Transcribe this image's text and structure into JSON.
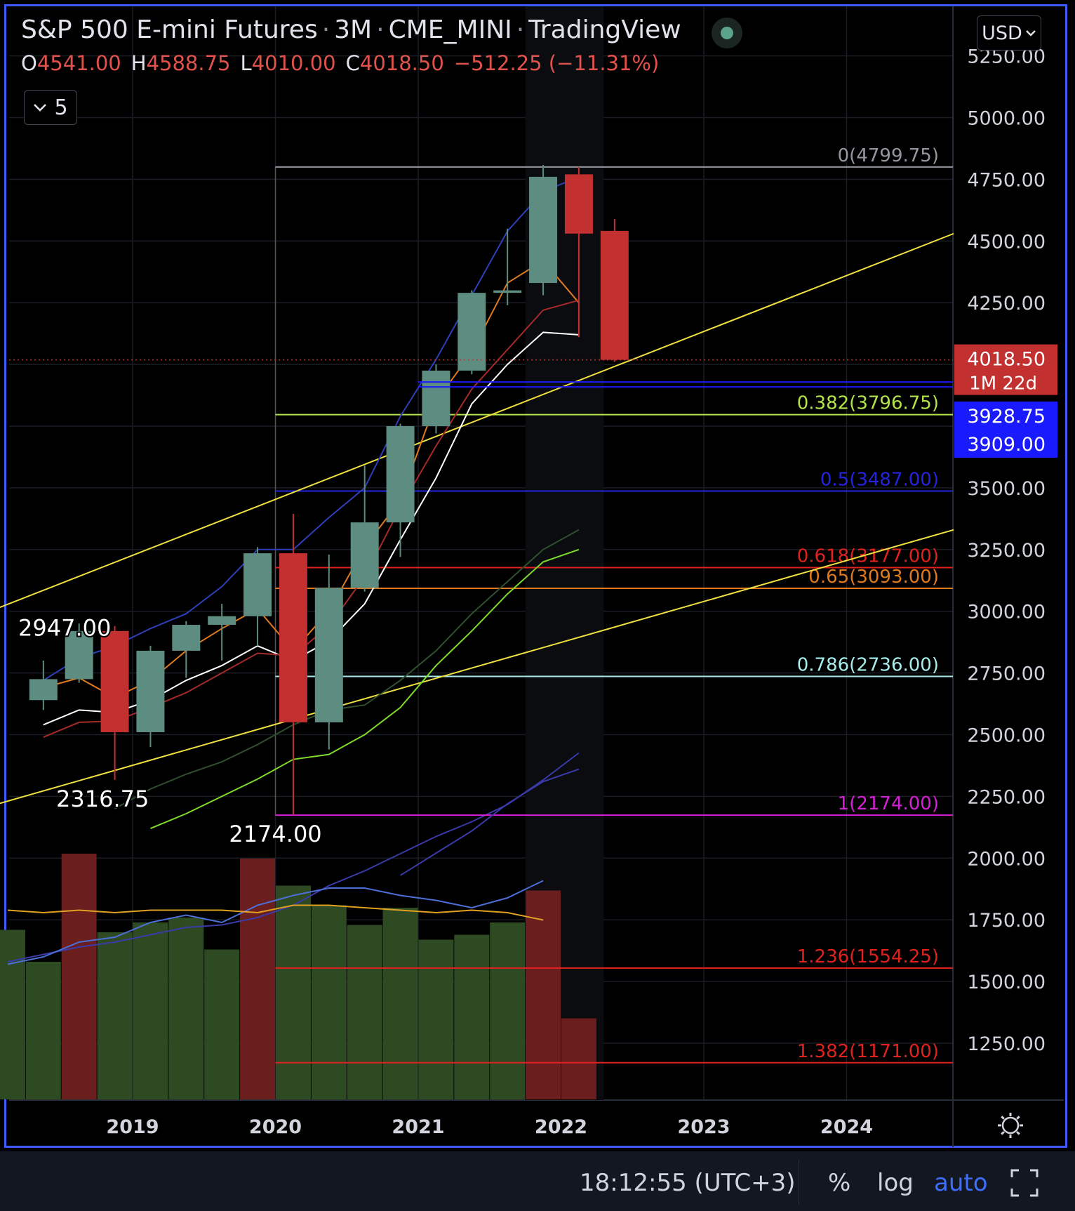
{
  "header": {
    "symbol": "S&P 500 E-mini Futures",
    "interval": "3M",
    "exchange": "CME_MINI",
    "source": "TradingView",
    "sep": "·"
  },
  "ohlc": {
    "o_label": "O",
    "o": "4541.00",
    "h_label": "H",
    "h": "4588.75",
    "l_label": "L",
    "l": "4010.00",
    "c_label": "C",
    "c": "4018.50",
    "change": "−512.25 (−11.31%)"
  },
  "indicators_toggle": {
    "icon": "chevron-down-icon",
    "count": "5"
  },
  "currency": {
    "label": "USD",
    "icon": "chevron-down-icon"
  },
  "footer": {
    "clock": "18:12:55 (UTC+3)",
    "percent_label": "%",
    "log_label": "log",
    "auto_label": "auto"
  },
  "colors": {
    "up": "#5d8c80",
    "down": "#c2302f",
    "vol_up": "#2e4a23",
    "vol_down": "#6b1e1e",
    "accent": "#3d6fff",
    "price_label": "#c2302f",
    "blue_label": "#1a1aff"
  },
  "chart_data": {
    "type": "candlestick",
    "interval": "3M",
    "y_range": [
      1000,
      5330
    ],
    "x_ticks": [
      "2019",
      "2020",
      "2021",
      "2022",
      "2023",
      "2024"
    ],
    "y_ticks": [
      "1250.00",
      "1500.00",
      "1750.00",
      "2000.00",
      "2250.00",
      "2500.00",
      "2750.00",
      "3000.00",
      "3250.00",
      "3500.00",
      "3750.00",
      "4000.00",
      "4250.00",
      "4500.00",
      "4750.00",
      "5000.00",
      "5250.00"
    ],
    "candles": [
      {
        "t": "2018-Q2",
        "open": 2640,
        "high": 2800,
        "low": 2600,
        "close": 2725
      },
      {
        "t": "2018-Q3",
        "open": 2725,
        "high": 2950,
        "low": 2710,
        "close": 2920
      },
      {
        "t": "2018-Q4",
        "open": 2920,
        "high": 2940,
        "low": 2316.75,
        "close": 2510
      },
      {
        "t": "2019-Q1",
        "open": 2510,
        "high": 2860,
        "low": 2450,
        "close": 2840
      },
      {
        "t": "2019-Q2",
        "open": 2840,
        "high": 2960,
        "low": 2730,
        "close": 2945
      },
      {
        "t": "2019-Q3",
        "open": 2945,
        "high": 3030,
        "low": 2800,
        "close": 2980
      },
      {
        "t": "2019-Q4",
        "open": 2980,
        "high": 3260,
        "low": 2860,
        "close": 3235
      },
      {
        "t": "2020-Q1",
        "open": 3235,
        "high": 3395,
        "low": 2174.0,
        "close": 2550
      },
      {
        "t": "2020-Q2",
        "open": 2550,
        "high": 3230,
        "low": 2440,
        "close": 3095
      },
      {
        "t": "2020-Q3",
        "open": 3095,
        "high": 3590,
        "low": 3080,
        "close": 3360
      },
      {
        "t": "2020-Q4",
        "open": 3360,
        "high": 3760,
        "low": 3220,
        "close": 3750
      },
      {
        "t": "2021-Q1",
        "open": 3750,
        "high": 4000,
        "low": 3720,
        "close": 3975
      },
      {
        "t": "2021-Q2",
        "open": 3975,
        "high": 4300,
        "low": 3960,
        "close": 4290
      },
      {
        "t": "2021-Q3",
        "open": 4290,
        "high": 4550,
        "low": 4240,
        "close": 4300
      },
      {
        "t": "2021-Q4",
        "open": 4330,
        "high": 4808,
        "low": 4280,
        "close": 4760
      },
      {
        "t": "2022-Q1",
        "open": 4770,
        "high": 4799.75,
        "low": 4110,
        "close": 4530
      },
      {
        "t": "2022-Q2",
        "open": 4541.0,
        "high": 4588.75,
        "low": 4010.0,
        "close": 4018.5
      }
    ],
    "volume": [
      {
        "t": "2018-Q1",
        "v": 0.69,
        "dir": "up"
      },
      {
        "t": "2018-Q2",
        "v": 0.56,
        "dir": "up"
      },
      {
        "t": "2018-Q3",
        "v": 1.0,
        "dir": "down"
      },
      {
        "t": "2018-Q4",
        "v": 0.68,
        "dir": "up"
      },
      {
        "t": "2019-Q1",
        "v": 0.72,
        "dir": "up"
      },
      {
        "t": "2019-Q2",
        "v": 0.74,
        "dir": "up"
      },
      {
        "t": "2019-Q3",
        "v": 0.61,
        "dir": "up"
      },
      {
        "t": "2019-Q4",
        "v": 0.98,
        "dir": "down"
      },
      {
        "t": "2020-Q1",
        "v": 0.87,
        "dir": "up"
      },
      {
        "t": "2020-Q2",
        "v": 0.79,
        "dir": "up"
      },
      {
        "t": "2020-Q3",
        "v": 0.71,
        "dir": "up"
      },
      {
        "t": "2020-Q4",
        "v": 0.78,
        "dir": "up"
      },
      {
        "t": "2021-Q1",
        "v": 0.65,
        "dir": "up"
      },
      {
        "t": "2021-Q2",
        "v": 0.67,
        "dir": "up"
      },
      {
        "t": "2021-Q3",
        "v": 0.72,
        "dir": "up"
      },
      {
        "t": "2021-Q4",
        "v": 0.85,
        "dir": "down"
      },
      {
        "t": "2022-Q1",
        "v": 0.33,
        "dir": "down"
      }
    ],
    "fib_levels": [
      {
        "label": "0(4799.75)",
        "value": 4799.75,
        "color": "#9598a1"
      },
      {
        "label": "0.382(3796.75)",
        "value": 3796.75,
        "color": "#b2e34a"
      },
      {
        "label": "0.5(3487.00)",
        "value": 3487.0,
        "color": "#2424e0"
      },
      {
        "label": "0.618(3177.00)",
        "value": 3177.0,
        "color": "#e0221f"
      },
      {
        "label": "0.65(3093.00)",
        "value": 3093.0,
        "color": "#e07a1f"
      },
      {
        "label": "0.786(2736.00)",
        "value": 2736.0,
        "color": "#a8ecec"
      },
      {
        "label": "1(2174.00)",
        "value": 2174.0,
        "color": "#d81fd8"
      },
      {
        "label": "1.236(1554.25)",
        "value": 1554.25,
        "color": "#e0221f"
      },
      {
        "label": "1.382(1171.00)",
        "value": 1171.0,
        "color": "#e0221f"
      }
    ],
    "price_labels": [
      {
        "text": "4018.50",
        "sub": "1M 22d",
        "value": 4018.5,
        "color": "#c2302f"
      },
      {
        "text": "3928.75",
        "value": 3928.75,
        "color": "#1a1aff"
      },
      {
        "text": "3909.00",
        "value": 3909.0,
        "color": "#1a1aff"
      }
    ],
    "annotations": [
      {
        "text": "2947.00",
        "value": 2947.0
      },
      {
        "text": "2316.75",
        "value": 2316.75
      },
      {
        "text": "2174.00",
        "value": 2174.0
      }
    ],
    "moving_averages": [
      {
        "color": "#2e3fb8",
        "values": [
          2720,
          2810,
          2860,
          2930,
          2990,
          3100,
          3250,
          3250,
          3380,
          3500,
          3790,
          4020,
          4280,
          4540,
          4700,
          4760
        ]
      },
      {
        "color": "#e07a1f",
        "values": [
          2690,
          2730,
          2650,
          2720,
          2840,
          2930,
          3010,
          2840,
          3000,
          3260,
          3450,
          3850,
          4050,
          4330,
          4420,
          4250
        ]
      },
      {
        "color": "#ffffff",
        "values": [
          2540,
          2600,
          2590,
          2640,
          2720,
          2780,
          2860,
          2800,
          2880,
          3030,
          3290,
          3540,
          3840,
          4000,
          4130,
          4120
        ]
      },
      {
        "color": "#a52a2a",
        "values": [
          2490,
          2550,
          2555,
          2610,
          2670,
          2750,
          2830,
          2820,
          2940,
          3140,
          3420,
          3670,
          3900,
          4060,
          4220,
          4260
        ]
      },
      {
        "color": "#2f4f2f",
        "values": [
          2200,
          2280,
          2340,
          2390,
          2460,
          2540,
          2600,
          2620,
          2720,
          2840,
          2990,
          3120,
          3250,
          3330
        ]
      },
      {
        "color": "#7fdb2a",
        "values": [
          2120,
          2180,
          2250,
          2320,
          2400,
          2420,
          2500,
          2610,
          2780,
          2920,
          3070,
          3200,
          3250
        ]
      },
      {
        "color": "#3a3aa8",
        "values": [
          1930,
          2020,
          2110,
          2220,
          2310,
          2360
        ]
      }
    ],
    "trend_lines": [
      {
        "color": "#f0e040",
        "from": {
          "t": 2018.0,
          "v": 3000
        },
        "to": {
          "t": 2024.75,
          "v": 4530
        }
      },
      {
        "color": "#f0e040",
        "from": {
          "t": 2018.0,
          "v": 2210
        },
        "to": {
          "t": 2024.75,
          "v": 3330
        }
      }
    ],
    "volume_mas": [
      {
        "color": "#3a3aa8",
        "values": [
          0.56,
          0.59,
          0.62,
          0.64,
          0.67,
          0.7,
          0.71,
          0.74,
          0.79,
          0.87,
          0.93,
          1.0,
          1.07,
          1.13,
          1.2,
          1.3,
          1.41
        ]
      },
      {
        "color": "#4c6fd8",
        "values": [
          0.55,
          0.58,
          0.64,
          0.66,
          0.72,
          0.75,
          0.72,
          0.79,
          0.83,
          0.86,
          0.86,
          0.83,
          0.81,
          0.78,
          0.82,
          0.89
        ]
      },
      {
        "color": "#e0a020",
        "values": [
          0.77,
          0.76,
          0.77,
          0.76,
          0.77,
          0.77,
          0.77,
          0.76,
          0.79,
          0.79,
          0.78,
          0.77,
          0.76,
          0.77,
          0.76,
          0.73
        ]
      }
    ]
  }
}
